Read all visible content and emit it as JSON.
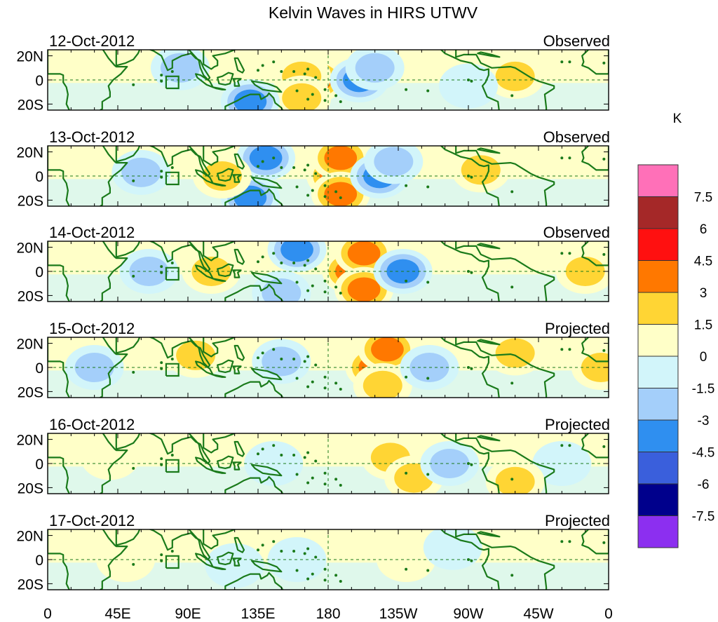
{
  "chart_data": {
    "type": "heatmap",
    "title": "Kelvin Waves in HIRS UTWV",
    "x_ticks": [
      "0",
      "45E",
      "90E",
      "135E",
      "180",
      "135W",
      "90W",
      "45W",
      "0"
    ],
    "y_ticks": [
      "20N",
      "0",
      "20S"
    ],
    "xlim": [
      0,
      360
    ],
    "ylim": [
      -25,
      25
    ],
    "colorbar": {
      "unit": "K",
      "levels": [
        "7.5",
        "6",
        "4.5",
        "3",
        "1.5",
        "0",
        "-1.5",
        "-3",
        "-4.5",
        "-6",
        "-7.5"
      ],
      "colors": [
        "#ff70b8",
        "#a52828",
        "#ff1010",
        "#ff7800",
        "#ffd534",
        "#ffffc8",
        "#d2f5fa",
        "#a4cffa",
        "#2f8ff0",
        "#3a5fdc",
        "#00008c",
        "#8c2ff0"
      ]
    },
    "panels": [
      {
        "date": "12-Oct-2012",
        "kind": "Observed",
        "anomalies": [
          {
            "lon": 172,
            "lat": 0,
            "value": 4.0
          },
          {
            "lon": 163,
            "lat": 3,
            "value": 1.8
          },
          {
            "lon": 163,
            "lat": -15,
            "value": 1.8
          },
          {
            "lon": 200,
            "lat": 0,
            "value": -3.5
          },
          {
            "lon": 210,
            "lat": 10,
            "value": -1.8
          },
          {
            "lon": 130,
            "lat": -18,
            "value": -3.2
          },
          {
            "lon": 85,
            "lat": 10,
            "value": -1.6
          },
          {
            "lon": 300,
            "lat": 3,
            "value": 1.8
          },
          {
            "lon": 270,
            "lat": -5,
            "value": -1.4
          }
        ]
      },
      {
        "date": "13-Oct-2012",
        "kind": "Observed",
        "anomalies": [
          {
            "lon": 185,
            "lat": 0,
            "value": 4.2
          },
          {
            "lon": 188,
            "lat": 15,
            "value": 3.5
          },
          {
            "lon": 188,
            "lat": -15,
            "value": 3.8
          },
          {
            "lon": 213,
            "lat": 0,
            "value": -3.8
          },
          {
            "lon": 222,
            "lat": 12,
            "value": -1.8
          },
          {
            "lon": 140,
            "lat": 15,
            "value": -3.5
          },
          {
            "lon": 130,
            "lat": -18,
            "value": -3.5
          },
          {
            "lon": 112,
            "lat": 0,
            "value": 1.8
          },
          {
            "lon": 278,
            "lat": 5,
            "value": 1.8
          },
          {
            "lon": 60,
            "lat": 3,
            "value": -1.6
          }
        ]
      },
      {
        "date": "14-Oct-2012",
        "kind": "Observed",
        "anomalies": [
          {
            "lon": 195,
            "lat": 0,
            "value": 4.0
          },
          {
            "lon": 203,
            "lat": 15,
            "value": 3.8
          },
          {
            "lon": 203,
            "lat": -15,
            "value": 3.8
          },
          {
            "lon": 228,
            "lat": 0,
            "value": -3.5
          },
          {
            "lon": 160,
            "lat": 18,
            "value": -3.2
          },
          {
            "lon": 150,
            "lat": -18,
            "value": -3.0
          },
          {
            "lon": 105,
            "lat": 0,
            "value": 1.8
          },
          {
            "lon": 345,
            "lat": 0,
            "value": 1.8
          },
          {
            "lon": 65,
            "lat": 0,
            "value": -1.6
          }
        ]
      },
      {
        "date": "15-Oct-2012",
        "kind": "Projected",
        "anomalies": [
          {
            "lon": 210,
            "lat": 0,
            "value": 3.5
          },
          {
            "lon": 218,
            "lat": 15,
            "value": 3.2
          },
          {
            "lon": 215,
            "lat": -15,
            "value": 3.0
          },
          {
            "lon": 245,
            "lat": 0,
            "value": -1.8
          },
          {
            "lon": 150,
            "lat": 5,
            "value": -1.6
          },
          {
            "lon": 30,
            "lat": 0,
            "value": -1.6
          },
          {
            "lon": 95,
            "lat": 10,
            "value": 1.6
          },
          {
            "lon": 355,
            "lat": 0,
            "value": 1.8
          },
          {
            "lon": 300,
            "lat": 12,
            "value": 1.6
          }
        ]
      },
      {
        "date": "16-Oct-2012",
        "kind": "Projected",
        "anomalies": [
          {
            "lon": 220,
            "lat": 5,
            "value": 1.8
          },
          {
            "lon": 235,
            "lat": -12,
            "value": 1.8
          },
          {
            "lon": 258,
            "lat": 0,
            "value": -1.6
          },
          {
            "lon": 145,
            "lat": 0,
            "value": -1.4
          },
          {
            "lon": 330,
            "lat": 0,
            "value": -1.4
          },
          {
            "lon": 40,
            "lat": 5,
            "value": 1.4
          },
          {
            "lon": 300,
            "lat": -15,
            "value": 1.6
          }
        ]
      },
      {
        "date": "17-Oct-2012",
        "kind": "Projected",
        "anomalies": [
          {
            "lon": 230,
            "lat": 0,
            "value": 1.2
          },
          {
            "lon": 260,
            "lat": 10,
            "value": -1.4
          },
          {
            "lon": 160,
            "lat": 0,
            "value": -1.0
          },
          {
            "lon": 50,
            "lat": 0,
            "value": 1.0
          },
          {
            "lon": 120,
            "lat": -5,
            "value": -1.2
          }
        ]
      }
    ]
  }
}
